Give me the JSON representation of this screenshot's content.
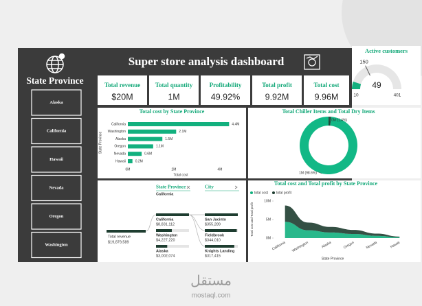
{
  "header": {
    "title": "Super store analysis dashboard"
  },
  "slicer": {
    "title": "State Province",
    "items": [
      "Alaska",
      "California",
      "Hawaii",
      "Nevada",
      "Oregon",
      "Washington"
    ]
  },
  "kpis": [
    {
      "label": "Total revenue",
      "value": "$20M"
    },
    {
      "label": "Total quantity",
      "value": "1M"
    },
    {
      "label": "Profitability",
      "value": "49.92%"
    },
    {
      "label": "Total profit",
      "value": "9.92M"
    },
    {
      "label": "Total cost",
      "value": "9.96M"
    }
  ],
  "chart_data": [
    {
      "type": "gauge",
      "title": "Active customers",
      "value": 49,
      "target": 150,
      "min": 10,
      "max": 401,
      "color": "#12b07e"
    },
    {
      "type": "bar",
      "title": "Total cost by State Province",
      "categories": [
        "California",
        "Washington",
        "Alaska",
        "Oregon",
        "Nevada",
        "Hawaii"
      ],
      "values": [
        4.4,
        2.1,
        1.5,
        1.1,
        0.6,
        0.2
      ],
      "value_labels": [
        "4.4M",
        "2.1M",
        "1.5M",
        "1.1M",
        "0.6M",
        "0.2M"
      ],
      "xlim": [
        0,
        4.6
      ],
      "xticks": [
        {
          "value": 0,
          "label": "0M"
        },
        {
          "value": 2,
          "label": "2M"
        },
        {
          "value": 4,
          "label": "4M"
        }
      ],
      "xlabel": "Total cost",
      "ylabel": "State Province",
      "color": "#12b07e"
    },
    {
      "type": "pie",
      "title": "Total Chiller Items and Total Dry Items",
      "values": [
        1.4,
        98.6
      ],
      "value_labels": [
        "0M (1.4%)",
        "1M (98.6%)"
      ],
      "colors": [
        "#1e4a3a",
        "#12b886"
      ]
    },
    {
      "type": "decomposition",
      "headers": [
        "State Province",
        "City"
      ],
      "filter": "California",
      "root": {
        "name": "Total revenue",
        "value": 19879589,
        "value_label": "$19,879,589"
      },
      "levels": [
        {
          "categories": [
            "California",
            "Washington",
            "Alaska"
          ],
          "values": [
            8831112,
            4227220,
            3002074
          ],
          "value_labels": [
            "$8,831,112",
            "$4,227,220",
            "$3,002,074"
          ]
        },
        {
          "categories": [
            "San Jacinto",
            "Fieldbrook",
            "Knights Landing"
          ],
          "values": [
            355289,
            344010,
            317415
          ],
          "value_labels": [
            "$355,289",
            "$344,010",
            "$317,415"
          ]
        }
      ],
      "color": "#1e3d30"
    },
    {
      "type": "area",
      "title": "Total cost and Total profit by State Province",
      "categories": [
        "California",
        "Washington",
        "Alaska",
        "Oregon",
        "Nevada",
        "Hawaii"
      ],
      "series": [
        {
          "name": "total cost",
          "color": "#12b07e",
          "values": [
            4.4,
            2.1,
            1.5,
            1.1,
            0.6,
            0.2
          ]
        },
        {
          "name": "total profit",
          "color": "#1e3d30",
          "values": [
            4.4,
            2.1,
            1.5,
            1.1,
            0.6,
            0.2
          ]
        }
      ],
      "ylim": [
        0,
        10
      ],
      "yticks": [
        {
          "value": 0,
          "label": "0M"
        },
        {
          "value": 5,
          "label": "5M"
        },
        {
          "value": 10,
          "label": "10M"
        }
      ],
      "xlabel": "State Province",
      "ylabel": "Total cost and Total profit"
    }
  ],
  "watermark": {
    "arabic": "مستقل",
    "latin": "mostaql.com"
  }
}
